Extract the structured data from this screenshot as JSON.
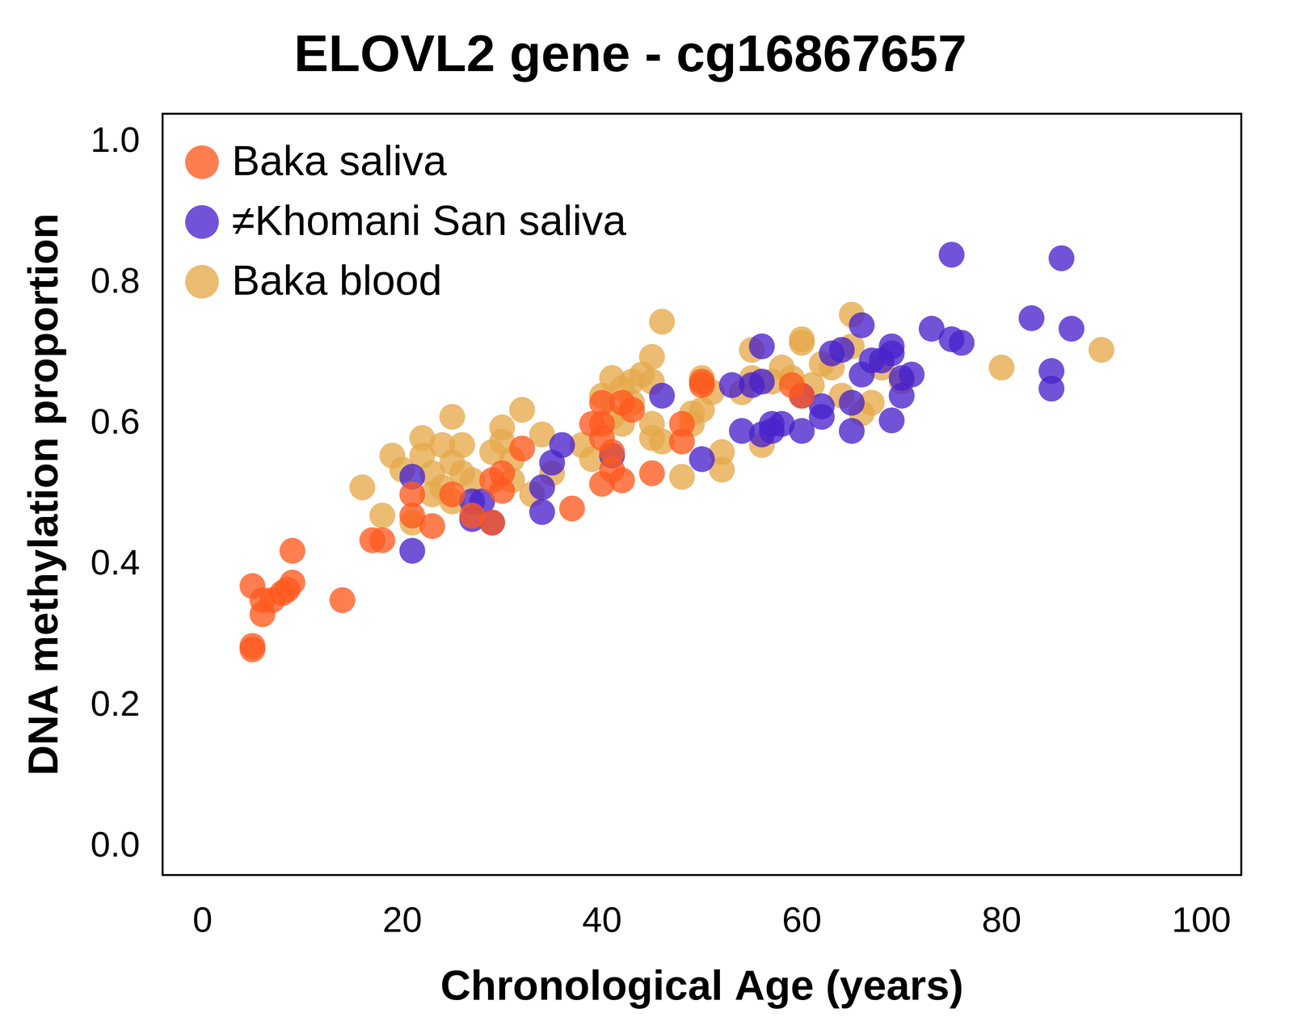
{
  "chart_data": {
    "type": "scatter",
    "title": "ELOVL2 gene - cg16867657",
    "x_label": "Chronological Age (years)",
    "y_label": "DNA methylation proportion",
    "xlim": [
      -4,
      104
    ],
    "xticks": [
      0,
      20,
      40,
      60,
      80,
      100
    ],
    "ylim": [
      -0.04,
      1.04
    ],
    "yticks": [
      {
        "value": 0,
        "label": "0.0"
      },
      0.2,
      0.4,
      0.6,
      0.8,
      {
        "value": 1,
        "label": "1.0"
      }
    ],
    "grid": false,
    "legend": "top left",
    "marker": "circle",
    "series": [
      {
        "name": "Baka saliva",
        "color": "#ff5a1f",
        "x": [
          5,
          5,
          5,
          6,
          6,
          7,
          8,
          8.5,
          9,
          9,
          14,
          17,
          18,
          21,
          21,
          23,
          25,
          27,
          29,
          29,
          30,
          30,
          32,
          37,
          39,
          40,
          40,
          40,
          40,
          41,
          41,
          42,
          42,
          43,
          45,
          48,
          48,
          50,
          50,
          59,
          60
        ],
        "values": [
          0.37,
          0.285,
          0.28,
          0.35,
          0.33,
          0.35,
          0.36,
          0.365,
          0.42,
          0.375,
          0.35,
          0.435,
          0.435,
          0.5,
          0.47,
          0.455,
          0.5,
          0.47,
          0.46,
          0.52,
          0.53,
          0.505,
          0.565,
          0.48,
          0.6,
          0.63,
          0.6,
          0.58,
          0.515,
          0.56,
          0.535,
          0.52,
          0.63,
          0.62,
          0.53,
          0.6,
          0.575,
          0.66,
          0.655,
          0.655,
          0.64
        ]
      },
      {
        "name": "≠Khomani San saliva",
        "color": "#4a22cc",
        "x": [
          21,
          21,
          27,
          27,
          28,
          29,
          34,
          34,
          35,
          36,
          41,
          46,
          50,
          53,
          54,
          55,
          56,
          56,
          56,
          57,
          57,
          58,
          60,
          60,
          62,
          62,
          63,
          64,
          65,
          65,
          66,
          66,
          67,
          68,
          69,
          69,
          69,
          70,
          70,
          71,
          73,
          75,
          75,
          76,
          83,
          85,
          85,
          86,
          87
        ],
        "values": [
          0.42,
          0.525,
          0.49,
          0.465,
          0.49,
          0.46,
          0.51,
          0.475,
          0.545,
          0.57,
          0.555,
          0.64,
          0.55,
          0.655,
          0.59,
          0.655,
          0.71,
          0.66,
          0.585,
          0.6,
          0.59,
          0.6,
          0.64,
          0.59,
          0.625,
          0.61,
          0.7,
          0.705,
          0.63,
          0.59,
          0.74,
          0.67,
          0.69,
          0.69,
          0.71,
          0.7,
          0.605,
          0.665,
          0.64,
          0.67,
          0.735,
          0.84,
          0.72,
          0.715,
          0.75,
          0.675,
          0.65,
          0.835,
          0.735
        ]
      },
      {
        "name": "Baka blood",
        "color": "#e6a94a",
        "x": [
          16,
          18,
          19,
          20,
          21,
          22,
          22,
          23,
          23,
          24,
          24,
          25,
          25,
          25,
          26,
          26,
          27,
          29,
          30,
          30,
          31,
          31,
          32,
          33,
          34,
          35,
          38,
          39,
          40,
          41,
          41,
          42,
          42,
          43,
          43,
          44,
          45,
          45,
          45,
          45,
          46,
          46,
          48,
          49,
          49,
          50,
          50,
          51,
          52,
          52,
          54,
          55,
          55,
          56,
          57,
          58,
          59,
          60,
          60,
          61,
          62,
          63,
          64,
          65,
          65,
          66,
          67,
          68,
          70,
          80,
          90
        ],
        "values": [
          0.51,
          0.47,
          0.555,
          0.535,
          0.46,
          0.58,
          0.555,
          0.53,
          0.5,
          0.57,
          0.51,
          0.61,
          0.545,
          0.49,
          0.57,
          0.53,
          0.52,
          0.56,
          0.595,
          0.575,
          0.55,
          0.52,
          0.62,
          0.5,
          0.585,
          0.53,
          0.57,
          0.55,
          0.64,
          0.665,
          0.61,
          0.65,
          0.6,
          0.66,
          0.63,
          0.67,
          0.695,
          0.66,
          0.6,
          0.58,
          0.745,
          0.575,
          0.525,
          0.6,
          0.615,
          0.665,
          0.62,
          0.645,
          0.56,
          0.535,
          0.645,
          0.705,
          0.665,
          0.57,
          0.66,
          0.68,
          0.665,
          0.715,
          0.72,
          0.655,
          0.685,
          0.68,
          0.64,
          0.755,
          0.71,
          0.615,
          0.63,
          0.68,
          0.66,
          0.68,
          0.705
        ]
      }
    ]
  }
}
